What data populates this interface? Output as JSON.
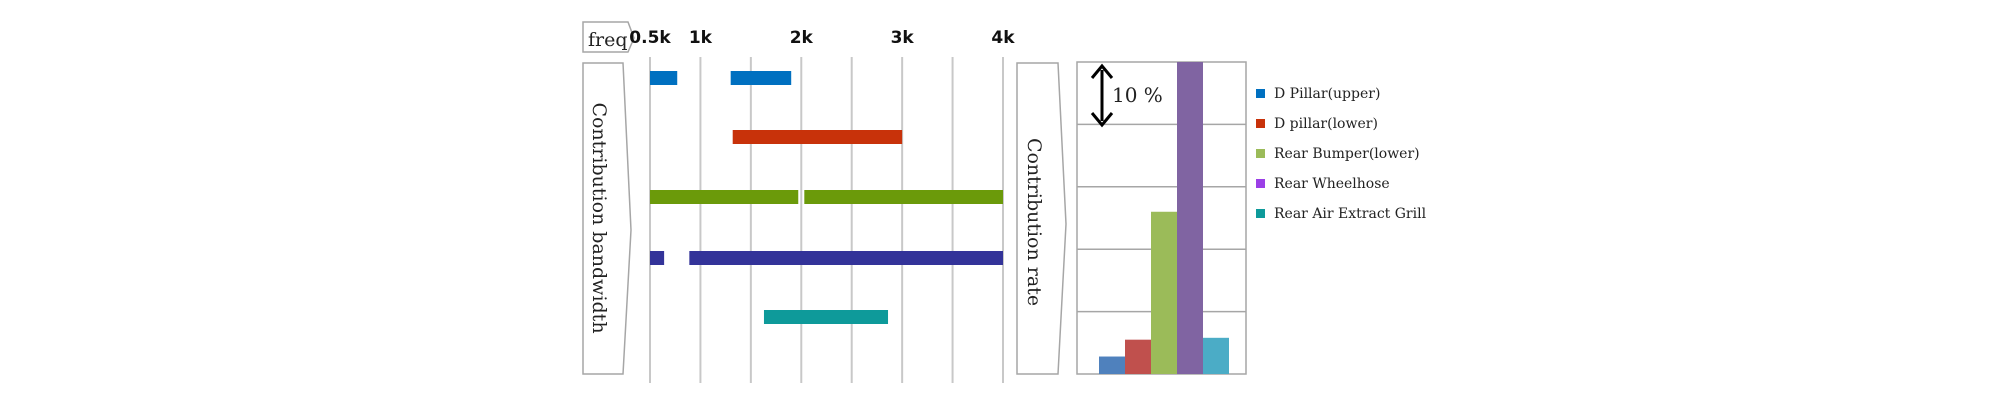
{
  "colors": {
    "d_pillar_upper": "#0070c0",
    "d_pillar_lower": "#c8320a",
    "rear_bumper_bandwidth": "#6b9a0a",
    "rear_wheelhose_bandwidth": "#333399",
    "rear_air_extract_bandwidth": "#0e9a9a",
    "bar_d_pillar_upper": "#4f81bd",
    "bar_d_pillar_lower": "#c0504d",
    "bar_rear_bumper": "#9bbb59",
    "bar_rear_wheelhose": "#8064a2",
    "bar_rear_air_extract": "#4bacc6",
    "legend_wheelhose": "#9b3fe6",
    "grid": "#c8c8c8",
    "frame": "#a6a6a6"
  },
  "labels": {
    "freq": "freq",
    "contribution_bandwidth": "Contribution bandwidth",
    "contribution_rate": "Contribution rate",
    "scale_annotation": "10 %"
  },
  "chart_data": [
    {
      "type": "bar",
      "orientation": "horizontal-range",
      "x_ticks": [
        "0.5k",
        "1k",
        "2k",
        "3k",
        "4k"
      ],
      "x_tick_values": [
        0.5,
        1,
        2,
        3,
        4
      ],
      "xlim": [
        0.5,
        4.0
      ],
      "grid": true,
      "series": [
        {
          "key": "d_pillar_upper",
          "ranges": [
            [
              0.5,
              0.77
            ],
            [
              1.3,
              1.9
            ]
          ]
        },
        {
          "key": "d_pillar_lower",
          "ranges": [
            [
              1.32,
              3.0
            ]
          ]
        },
        {
          "key": "rear_bumper_bandwidth",
          "ranges": [
            [
              0.5,
              1.97
            ],
            [
              2.03,
              4.0
            ]
          ]
        },
        {
          "key": "rear_wheelhose_bandwidth",
          "ranges": [
            [
              0.5,
              0.64
            ],
            [
              0.89,
              4.0
            ]
          ]
        },
        {
          "key": "rear_air_extract_bandwidth",
          "ranges": [
            [
              1.63,
              2.86
            ]
          ]
        }
      ]
    },
    {
      "type": "bar",
      "ylabel": "Contribution rate",
      "ylim": [
        0,
        50
      ],
      "y_step": 10,
      "grid": true,
      "legend_position": "right",
      "series": [
        {
          "name": "D Pillar(upper)",
          "value": 2.8
        },
        {
          "name": "D pillar(lower)",
          "value": 5.5
        },
        {
          "name": "Rear Bumper(lower)",
          "value": 26
        },
        {
          "name": "Rear Wheelhose",
          "value": 50
        },
        {
          "name": "Rear Air Extract Grill",
          "value": 5.8
        }
      ]
    }
  ]
}
